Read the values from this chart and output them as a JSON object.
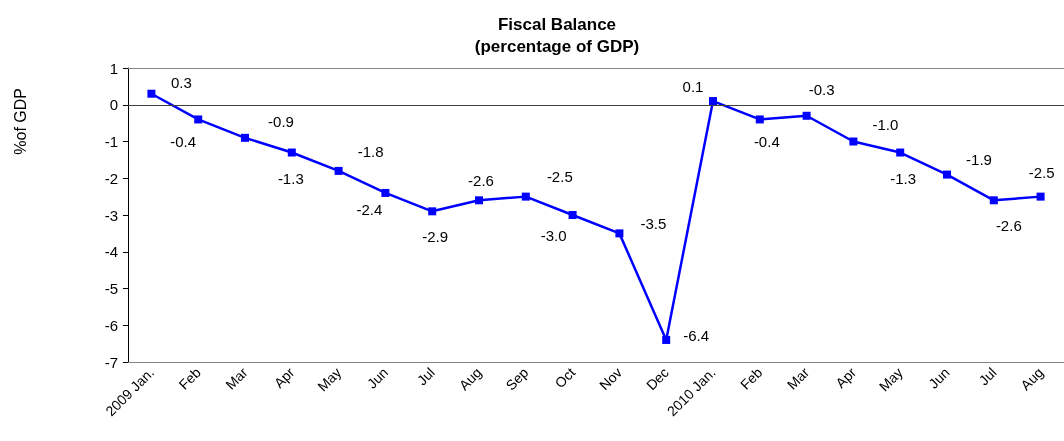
{
  "chart_data": {
    "type": "line",
    "title": "Fiscal Balance",
    "subtitle": "(percentage of GDP)",
    "ylabel": "%of GDP",
    "categories": [
      "2009 Jan.",
      "Feb",
      "Mar",
      "Apr",
      "May",
      "Jun",
      "Jul",
      "Aug",
      "Sep",
      "Oct",
      "Nov",
      "Dec",
      "2010 Jan.",
      "Feb",
      "Mar",
      "Apr",
      "May",
      "Jun",
      "Jul",
      "Aug"
    ],
    "series": [
      {
        "color": "#0000ff",
        "values": [
          0.3,
          -0.4,
          -0.9,
          -1.3,
          -1.8,
          -2.4,
          -2.9,
          -2.6,
          -2.5,
          -3.0,
          -3.5,
          -6.4,
          0.1,
          -0.4,
          -0.3,
          -1.0,
          -1.3,
          -1.9,
          -2.6,
          -2.5
        ],
        "value_labels": [
          "0.3",
          "-0.4",
          "-0.9",
          "-1.3",
          "-1.8",
          "-2.4",
          "-2.9",
          "-2.6",
          "-2.5",
          "-3.0",
          "-3.5",
          "-6.4",
          "0.1",
          "-0.4",
          "-0.3",
          "-1.0",
          "-1.3",
          "-1.9",
          "-2.6",
          "-2.5"
        ]
      }
    ],
    "ylim": [
      -7,
      1
    ],
    "yticks": [
      -7,
      -6,
      -5,
      -4,
      -3,
      -2,
      -1,
      0,
      1
    ],
    "ref_lines": [
      {
        "axis": "y",
        "value": 0,
        "color": "#404040"
      }
    ],
    "marker": "square",
    "line_style": "solid"
  }
}
